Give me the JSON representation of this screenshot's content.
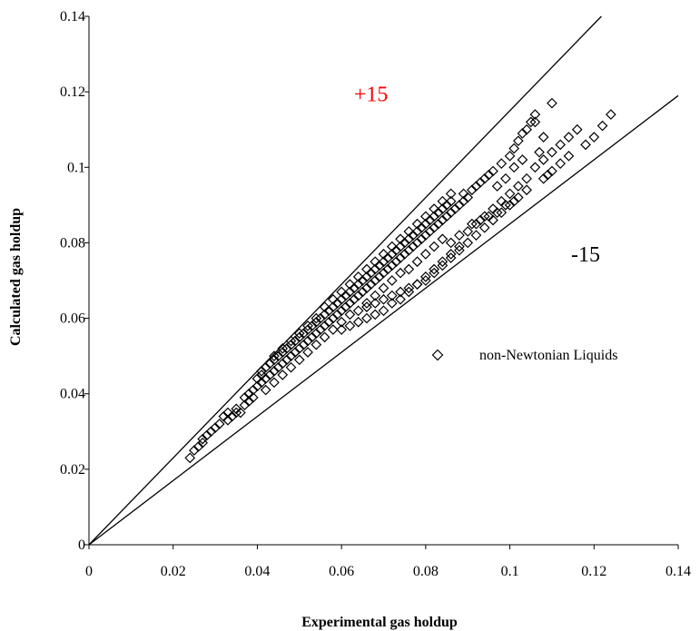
{
  "chart_data": {
    "type": "scatter",
    "title": "",
    "xlabel": "Experimental gas holdup",
    "ylabel": "Calculated gas holdup",
    "xlim": [
      0,
      0.14
    ],
    "ylim": [
      0,
      0.14
    ],
    "x_ticks": [
      "0",
      "0.02",
      "0.04",
      "0.06",
      "0.08",
      "0.1",
      "0.12",
      "0.14"
    ],
    "y_ticks": [
      "0",
      "0.02",
      "0.04",
      "0.06",
      "0.08",
      "0.1",
      "0.12",
      "0.14"
    ],
    "grid": false,
    "legend_position": "right",
    "series": [
      {
        "name": "non-Newtonian Liquids",
        "marker": "diamond",
        "color": "#000000",
        "points": [
          [
            0.024,
            0.023
          ],
          [
            0.025,
            0.025
          ],
          [
            0.026,
            0.026
          ],
          [
            0.027,
            0.028
          ],
          [
            0.027,
            0.027
          ],
          [
            0.028,
            0.029
          ],
          [
            0.029,
            0.03
          ],
          [
            0.03,
            0.031
          ],
          [
            0.031,
            0.032
          ],
          [
            0.032,
            0.034
          ],
          [
            0.033,
            0.035
          ],
          [
            0.033,
            0.033
          ],
          [
            0.034,
            0.034
          ],
          [
            0.035,
            0.035
          ],
          [
            0.035,
            0.036
          ],
          [
            0.036,
            0.035
          ],
          [
            0.037,
            0.037
          ],
          [
            0.037,
            0.039
          ],
          [
            0.038,
            0.038
          ],
          [
            0.038,
            0.04
          ],
          [
            0.039,
            0.041
          ],
          [
            0.039,
            0.039
          ],
          [
            0.04,
            0.042
          ],
          [
            0.04,
            0.044
          ],
          [
            0.041,
            0.043
          ],
          [
            0.041,
            0.045
          ],
          [
            0.041,
            0.046
          ],
          [
            0.042,
            0.044
          ],
          [
            0.042,
            0.047
          ],
          [
            0.043,
            0.045
          ],
          [
            0.043,
            0.048
          ],
          [
            0.044,
            0.046
          ],
          [
            0.044,
            0.049
          ],
          [
            0.045,
            0.047
          ],
          [
            0.045,
            0.05
          ],
          [
            0.046,
            0.048
          ],
          [
            0.046,
            0.051
          ],
          [
            0.047,
            0.049
          ],
          [
            0.047,
            0.052
          ],
          [
            0.048,
            0.05
          ],
          [
            0.048,
            0.053
          ],
          [
            0.049,
            0.051
          ],
          [
            0.049,
            0.054
          ],
          [
            0.05,
            0.052
          ],
          [
            0.05,
            0.055
          ],
          [
            0.051,
            0.053
          ],
          [
            0.051,
            0.056
          ],
          [
            0.052,
            0.054
          ],
          [
            0.052,
            0.057
          ],
          [
            0.053,
            0.055
          ],
          [
            0.053,
            0.058
          ],
          [
            0.054,
            0.056
          ],
          [
            0.054,
            0.059
          ],
          [
            0.055,
            0.057
          ],
          [
            0.055,
            0.06
          ],
          [
            0.056,
            0.058
          ],
          [
            0.056,
            0.061
          ],
          [
            0.057,
            0.059
          ],
          [
            0.057,
            0.062
          ],
          [
            0.058,
            0.06
          ],
          [
            0.058,
            0.063
          ],
          [
            0.059,
            0.061
          ],
          [
            0.059,
            0.064
          ],
          [
            0.06,
            0.062
          ],
          [
            0.06,
            0.065
          ],
          [
            0.061,
            0.063
          ],
          [
            0.061,
            0.066
          ],
          [
            0.062,
            0.064
          ],
          [
            0.062,
            0.067
          ],
          [
            0.063,
            0.065
          ],
          [
            0.063,
            0.068
          ],
          [
            0.064,
            0.066
          ],
          [
            0.064,
            0.069
          ],
          [
            0.065,
            0.067
          ],
          [
            0.065,
            0.07
          ],
          [
            0.066,
            0.068
          ],
          [
            0.066,
            0.071
          ],
          [
            0.067,
            0.069
          ],
          [
            0.067,
            0.072
          ],
          [
            0.068,
            0.07
          ],
          [
            0.068,
            0.073
          ],
          [
            0.069,
            0.071
          ],
          [
            0.069,
            0.074
          ],
          [
            0.07,
            0.072
          ],
          [
            0.07,
            0.075
          ],
          [
            0.071,
            0.073
          ],
          [
            0.071,
            0.076
          ],
          [
            0.072,
            0.074
          ],
          [
            0.072,
            0.077
          ],
          [
            0.073,
            0.075
          ],
          [
            0.073,
            0.078
          ],
          [
            0.074,
            0.076
          ],
          [
            0.074,
            0.079
          ],
          [
            0.075,
            0.077
          ],
          [
            0.075,
            0.08
          ],
          [
            0.076,
            0.078
          ],
          [
            0.076,
            0.081
          ],
          [
            0.077,
            0.079
          ],
          [
            0.077,
            0.082
          ],
          [
            0.078,
            0.08
          ],
          [
            0.078,
            0.083
          ],
          [
            0.079,
            0.081
          ],
          [
            0.079,
            0.084
          ],
          [
            0.08,
            0.082
          ],
          [
            0.08,
            0.085
          ],
          [
            0.081,
            0.083
          ],
          [
            0.081,
            0.086
          ],
          [
            0.082,
            0.084
          ],
          [
            0.082,
            0.087
          ],
          [
            0.083,
            0.085
          ],
          [
            0.083,
            0.088
          ],
          [
            0.084,
            0.086
          ],
          [
            0.084,
            0.089
          ],
          [
            0.085,
            0.087
          ],
          [
            0.085,
            0.09
          ],
          [
            0.086,
            0.088
          ],
          [
            0.086,
            0.091
          ],
          [
            0.087,
            0.089
          ],
          [
            0.088,
            0.09
          ],
          [
            0.089,
            0.091
          ],
          [
            0.089,
            0.093
          ],
          [
            0.09,
            0.092
          ],
          [
            0.091,
            0.094
          ],
          [
            0.092,
            0.095
          ],
          [
            0.093,
            0.096
          ],
          [
            0.094,
            0.097
          ],
          [
            0.095,
            0.098
          ],
          [
            0.096,
            0.099
          ],
          [
            0.098,
            0.101
          ],
          [
            0.1,
            0.103
          ],
          [
            0.101,
            0.105
          ],
          [
            0.102,
            0.107
          ],
          [
            0.103,
            0.109
          ],
          [
            0.105,
            0.112
          ],
          [
            0.106,
            0.114
          ],
          [
            0.11,
            0.117
          ],
          [
            0.044,
            0.05
          ],
          [
            0.046,
            0.052
          ],
          [
            0.048,
            0.054
          ],
          [
            0.05,
            0.056
          ],
          [
            0.052,
            0.058
          ],
          [
            0.054,
            0.06
          ],
          [
            0.056,
            0.063
          ],
          [
            0.058,
            0.065
          ],
          [
            0.06,
            0.067
          ],
          [
            0.062,
            0.069
          ],
          [
            0.064,
            0.071
          ],
          [
            0.066,
            0.073
          ],
          [
            0.068,
            0.075
          ],
          [
            0.07,
            0.077
          ],
          [
            0.072,
            0.079
          ],
          [
            0.074,
            0.081
          ],
          [
            0.076,
            0.083
          ],
          [
            0.078,
            0.085
          ],
          [
            0.08,
            0.087
          ],
          [
            0.082,
            0.089
          ],
          [
            0.084,
            0.091
          ],
          [
            0.086,
            0.093
          ],
          [
            0.042,
            0.041
          ],
          [
            0.044,
            0.043
          ],
          [
            0.046,
            0.045
          ],
          [
            0.048,
            0.047
          ],
          [
            0.05,
            0.049
          ],
          [
            0.052,
            0.051
          ],
          [
            0.054,
            0.053
          ],
          [
            0.056,
            0.055
          ],
          [
            0.058,
            0.057
          ],
          [
            0.06,
            0.059
          ],
          [
            0.062,
            0.061
          ],
          [
            0.064,
            0.062
          ],
          [
            0.066,
            0.063
          ],
          [
            0.068,
            0.064
          ],
          [
            0.07,
            0.065
          ],
          [
            0.072,
            0.066
          ],
          [
            0.074,
            0.067
          ],
          [
            0.076,
            0.068
          ],
          [
            0.078,
            0.069
          ],
          [
            0.08,
            0.07
          ],
          [
            0.082,
            0.072
          ],
          [
            0.084,
            0.074
          ],
          [
            0.086,
            0.076
          ],
          [
            0.088,
            0.078
          ],
          [
            0.09,
            0.08
          ],
          [
            0.092,
            0.082
          ],
          [
            0.094,
            0.084
          ],
          [
            0.096,
            0.086
          ],
          [
            0.098,
            0.088
          ],
          [
            0.1,
            0.09
          ],
          [
            0.102,
            0.092
          ],
          [
            0.104,
            0.094
          ],
          [
            0.06,
            0.057
          ],
          [
            0.062,
            0.058
          ],
          [
            0.064,
            0.059
          ],
          [
            0.066,
            0.06
          ],
          [
            0.068,
            0.061
          ],
          [
            0.07,
            0.062
          ],
          [
            0.072,
            0.064
          ],
          [
            0.074,
            0.065
          ],
          [
            0.076,
            0.067
          ],
          [
            0.078,
            0.069
          ],
          [
            0.08,
            0.071
          ],
          [
            0.082,
            0.073
          ],
          [
            0.084,
            0.075
          ],
          [
            0.086,
            0.077
          ],
          [
            0.088,
            0.079
          ],
          [
            0.09,
            0.083
          ],
          [
            0.092,
            0.085
          ],
          [
            0.094,
            0.087
          ],
          [
            0.096,
            0.089
          ],
          [
            0.098,
            0.091
          ],
          [
            0.1,
            0.093
          ],
          [
            0.102,
            0.095
          ],
          [
            0.104,
            0.097
          ],
          [
            0.106,
            0.1
          ],
          [
            0.108,
            0.102
          ],
          [
            0.11,
            0.104
          ],
          [
            0.112,
            0.106
          ],
          [
            0.114,
            0.108
          ],
          [
            0.116,
            0.11
          ],
          [
            0.108,
            0.097
          ],
          [
            0.109,
            0.098
          ],
          [
            0.11,
            0.099
          ],
          [
            0.112,
            0.101
          ],
          [
            0.114,
            0.103
          ],
          [
            0.118,
            0.106
          ],
          [
            0.12,
            0.108
          ],
          [
            0.122,
            0.111
          ],
          [
            0.124,
            0.114
          ],
          [
            0.106,
            0.112
          ],
          [
            0.108,
            0.108
          ],
          [
            0.104,
            0.11
          ],
          [
            0.107,
            0.104
          ],
          [
            0.103,
            0.102
          ],
          [
            0.101,
            0.1
          ],
          [
            0.099,
            0.097
          ],
          [
            0.097,
            0.095
          ],
          [
            0.091,
            0.085
          ],
          [
            0.093,
            0.086
          ],
          [
            0.095,
            0.087
          ],
          [
            0.097,
            0.088
          ],
          [
            0.099,
            0.09
          ],
          [
            0.101,
            0.091
          ],
          [
            0.088,
            0.082
          ],
          [
            0.086,
            0.08
          ],
          [
            0.084,
            0.081
          ],
          [
            0.082,
            0.079
          ],
          [
            0.08,
            0.077
          ],
          [
            0.078,
            0.075
          ],
          [
            0.076,
            0.073
          ],
          [
            0.074,
            0.072
          ],
          [
            0.072,
            0.07
          ],
          [
            0.07,
            0.068
          ],
          [
            0.068,
            0.066
          ],
          [
            0.066,
            0.064
          ]
        ]
      }
    ],
    "reference_lines": [
      {
        "label": "+15",
        "slope": 1.15,
        "color": "#ff0000",
        "label_x": 0.067,
        "label_y": 0.1175
      },
      {
        "label": "-15",
        "slope": 0.85,
        "color": "#000000",
        "label_x": 0.118,
        "label_y": 0.075
      }
    ]
  }
}
